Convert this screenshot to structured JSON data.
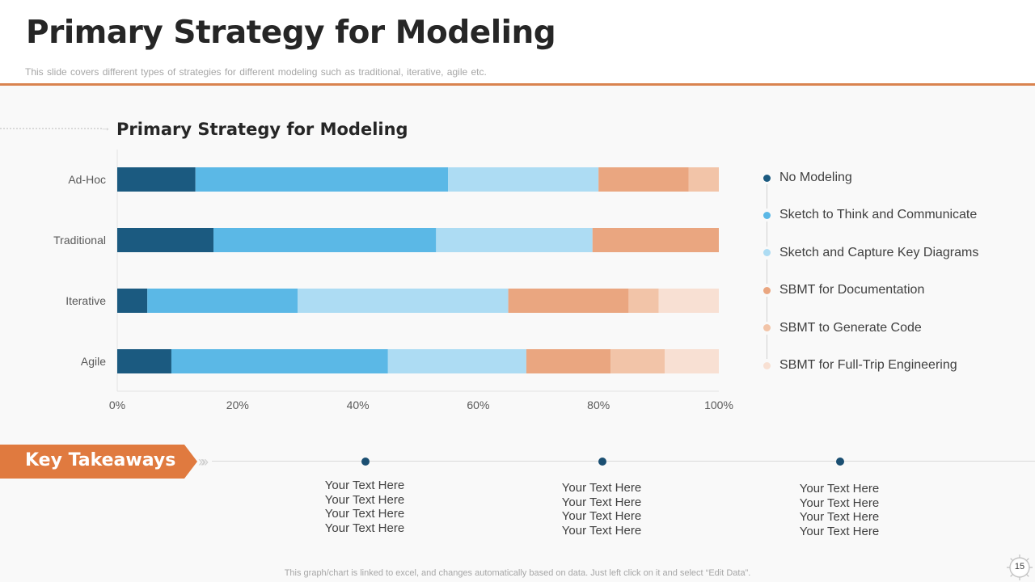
{
  "header": {
    "title": "Primary Strategy for Modeling",
    "subtitle": "This slide covers different types of strategies for different  modeling such as traditional, iterative, agile etc."
  },
  "colors": {
    "accent": "#d9834f",
    "series": [
      "#1b5a80",
      "#5bb8e6",
      "#addcf3",
      "#eaa680",
      "#f2c4a8",
      "#f8e0d3"
    ]
  },
  "chart_data": {
    "type": "bar",
    "orientation": "horizontal",
    "stacked": "percent",
    "title": "Primary Strategy for Modeling",
    "categories": [
      "Ad-Hoc",
      "Traditional",
      "Iterative",
      "Agile"
    ],
    "series": [
      {
        "name": "No Modeling",
        "values": [
          13,
          16,
          5,
          9
        ]
      },
      {
        "name": "Sketch to Think and Communicate",
        "values": [
          42,
          37,
          25,
          36
        ]
      },
      {
        "name": "Sketch and Capture Key Diagrams",
        "values": [
          25,
          26,
          35,
          23
        ]
      },
      {
        "name": "SBMT for Documentation",
        "values": [
          15,
          21,
          20,
          14
        ]
      },
      {
        "name": "SBMT to Generate Code",
        "values": [
          5,
          0,
          5,
          9
        ]
      },
      {
        "name": "SBMT for Full-Trip Engineering",
        "values": [
          0,
          0,
          10,
          9
        ]
      }
    ],
    "xlim": [
      0,
      100
    ],
    "x_ticks": [
      "0%",
      "20%",
      "40%",
      "60%",
      "80%",
      "100%"
    ],
    "legend_position": "right"
  },
  "takeaways": {
    "title": "Key Takeaways",
    "columns": [
      {
        "lines": [
          "Your Text Here",
          "Your Text Here",
          "Your Text Here",
          "Your Text Here"
        ]
      },
      {
        "lines": [
          "Your Text Here",
          "Your Text Here",
          "Your Text Here",
          "Your Text Here"
        ]
      },
      {
        "lines": [
          "Your Text Here",
          "Your Text Here",
          "Your Text Here",
          "Your Text Here"
        ]
      }
    ]
  },
  "footer": {
    "note": "This graph/chart is linked to excel,  and changes automatically based on data. Just left click on it and select “Edit Data”.",
    "page_number": "15"
  }
}
